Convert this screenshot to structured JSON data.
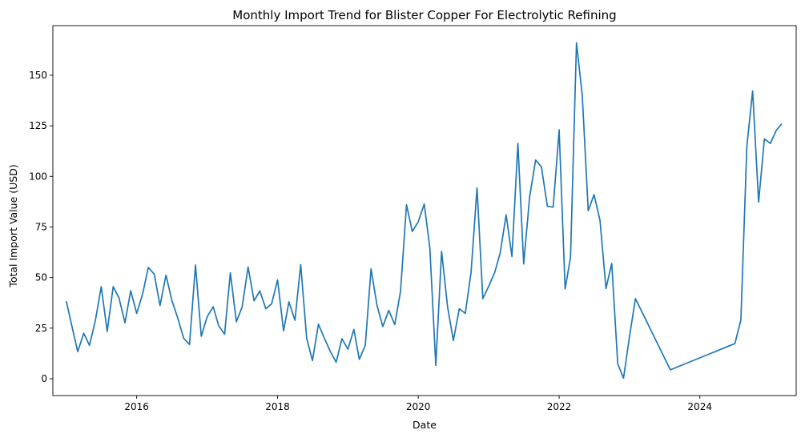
{
  "chart_data": {
    "type": "line",
    "title": "Monthly Import Trend for Blister Copper For Electrolytic Refining",
    "xlabel": "Date",
    "ylabel": "Total Import Value (USD)",
    "xlim": [
      "2014-10-23",
      "2025-05-15"
    ],
    "ylim": [
      -8.3,
      174.5
    ],
    "x_ticks": [
      {
        "date": "2016-01-01",
        "label": "2016"
      },
      {
        "date": "2018-01-01",
        "label": "2018"
      },
      {
        "date": "2020-01-01",
        "label": "2020"
      },
      {
        "date": "2022-01-01",
        "label": "2022"
      },
      {
        "date": "2024-01-01",
        "label": "2024"
      }
    ],
    "y_ticks": [
      0,
      25,
      50,
      75,
      100,
      125,
      150
    ],
    "grid": false,
    "line_color": "#1f77b4",
    "series": [
      {
        "points": [
          [
            "2015-01-01",
            38.3
          ],
          [
            "2015-02-01",
            25.0
          ],
          [
            "2015-03-01",
            13.4
          ],
          [
            "2015-04-01",
            22.5
          ],
          [
            "2015-05-01",
            16.5
          ],
          [
            "2015-06-01",
            29.0
          ],
          [
            "2015-07-01",
            45.5
          ],
          [
            "2015-08-01",
            23.4
          ],
          [
            "2015-09-01",
            45.5
          ],
          [
            "2015-10-01",
            40.0
          ],
          [
            "2015-11-01",
            27.7
          ],
          [
            "2015-12-01",
            43.5
          ],
          [
            "2016-01-01",
            32.3
          ],
          [
            "2016-02-01",
            42.0
          ],
          [
            "2016-03-01",
            55.0
          ],
          [
            "2016-04-01",
            51.7
          ],
          [
            "2016-05-01",
            36.2
          ],
          [
            "2016-06-01",
            51.2
          ],
          [
            "2016-07-01",
            38.9
          ],
          [
            "2016-08-01",
            30.0
          ],
          [
            "2016-09-01",
            20.0
          ],
          [
            "2016-10-01",
            16.9
          ],
          [
            "2016-11-01",
            56.2
          ],
          [
            "2016-12-01",
            21.0
          ],
          [
            "2017-01-01",
            30.7
          ],
          [
            "2017-02-01",
            35.6
          ],
          [
            "2017-03-01",
            26.3
          ],
          [
            "2017-04-01",
            22.0
          ],
          [
            "2017-05-01",
            52.4
          ],
          [
            "2017-06-01",
            28.2
          ],
          [
            "2017-07-01",
            35.4
          ],
          [
            "2017-08-01",
            55.2
          ],
          [
            "2017-09-01",
            38.5
          ],
          [
            "2017-10-01",
            43.4
          ],
          [
            "2017-11-01",
            34.6
          ],
          [
            "2017-12-01",
            37.0
          ],
          [
            "2018-01-01",
            48.9
          ],
          [
            "2018-02-01",
            23.7
          ],
          [
            "2018-03-01",
            38.0
          ],
          [
            "2018-04-01",
            28.9
          ],
          [
            "2018-05-01",
            56.4
          ],
          [
            "2018-06-01",
            20.0
          ],
          [
            "2018-07-01",
            9.0
          ],
          [
            "2018-08-01",
            27.0
          ],
          [
            "2018-09-01",
            20.0
          ],
          [
            "2018-10-01",
            13.6
          ],
          [
            "2018-11-01",
            8.2
          ],
          [
            "2018-12-01",
            19.8
          ],
          [
            "2019-01-01",
            14.6
          ],
          [
            "2019-02-01",
            24.4
          ],
          [
            "2019-03-01",
            9.6
          ],
          [
            "2019-04-01",
            16.5
          ],
          [
            "2019-05-01",
            54.3
          ],
          [
            "2019-06-01",
            36.2
          ],
          [
            "2019-07-01",
            25.8
          ],
          [
            "2019-08-01",
            33.8
          ],
          [
            "2019-09-01",
            26.8
          ],
          [
            "2019-10-01",
            43.2
          ],
          [
            "2019-11-01",
            86.0
          ],
          [
            "2019-12-01",
            72.8
          ],
          [
            "2020-01-01",
            77.6
          ],
          [
            "2020-02-01",
            86.3
          ],
          [
            "2020-03-01",
            64.8
          ],
          [
            "2020-04-01",
            6.6
          ],
          [
            "2020-05-01",
            63.0
          ],
          [
            "2020-06-01",
            35.6
          ],
          [
            "2020-07-01",
            18.9
          ],
          [
            "2020-08-01",
            34.6
          ],
          [
            "2020-09-01",
            32.3
          ],
          [
            "2020-10-01",
            52.6
          ],
          [
            "2020-11-01",
            94.3
          ],
          [
            "2020-12-01",
            39.6
          ],
          [
            "2021-01-01",
            45.8
          ],
          [
            "2021-02-01",
            52.6
          ],
          [
            "2021-03-01",
            62.2
          ],
          [
            "2021-04-01",
            81.0
          ],
          [
            "2021-05-01",
            60.4
          ],
          [
            "2021-06-01",
            116.3
          ],
          [
            "2021-07-01",
            56.7
          ],
          [
            "2021-08-01",
            90.0
          ],
          [
            "2021-09-01",
            108.1
          ],
          [
            "2021-10-01",
            104.7
          ],
          [
            "2021-11-01",
            85.2
          ],
          [
            "2021-12-01",
            84.8
          ],
          [
            "2022-01-01",
            123.0
          ],
          [
            "2022-02-01",
            44.4
          ],
          [
            "2022-03-01",
            60.0
          ],
          [
            "2022-04-01",
            166.0
          ],
          [
            "2022-05-01",
            140.0
          ],
          [
            "2022-06-01",
            83.0
          ],
          [
            "2022-07-01",
            91.0
          ],
          [
            "2022-08-01",
            78.3
          ],
          [
            "2022-09-01",
            44.6
          ],
          [
            "2022-10-01",
            57.0
          ],
          [
            "2022-11-01",
            7.4
          ],
          [
            "2022-12-01",
            0.3
          ],
          [
            "2023-01-01",
            20.9
          ],
          [
            "2023-02-01",
            39.6
          ],
          [
            "2023-08-01",
            4.4
          ],
          [
            "2024-07-01",
            17.4
          ],
          [
            "2024-08-01",
            29.0
          ],
          [
            "2024-09-01",
            114.9
          ],
          [
            "2024-10-01",
            142.2
          ],
          [
            "2024-11-01",
            87.3
          ],
          [
            "2024-12-01",
            118.5
          ],
          [
            "2025-01-01",
            116.3
          ],
          [
            "2025-02-01",
            122.8
          ],
          [
            "2025-03-01",
            126.0
          ]
        ]
      }
    ]
  }
}
